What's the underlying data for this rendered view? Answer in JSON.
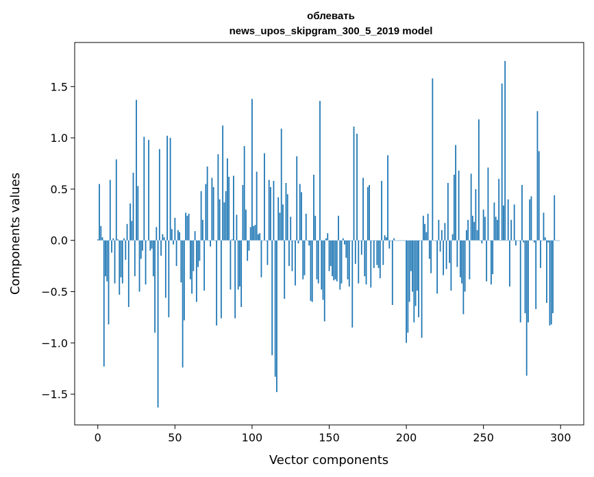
{
  "chart_data": {
    "type": "bar",
    "title": "облевать",
    "subtitle": "news_upos_skipgram_300_5_2019 model",
    "xlabel": "Vector components",
    "ylabel": "Components values",
    "xlim": [
      -15,
      315
    ],
    "ylim": [
      -1.8,
      1.93
    ],
    "x_ticks": [
      0,
      50,
      100,
      150,
      200,
      250,
      300
    ],
    "y_ticks": [
      -1.5,
      -1.0,
      -0.5,
      0.0,
      0.5,
      1.0,
      1.5
    ],
    "x_tick_labels": [
      "0",
      "50",
      "100",
      "150",
      "200",
      "250",
      "300"
    ],
    "y_tick_labels": [
      "−1.5",
      "−1.0",
      "−0.5",
      "0.0",
      "0.5",
      "1.0",
      "1.5"
    ],
    "grid": false,
    "bar_color": "#1f77b4",
    "values": [
      0.01,
      0.55,
      0.14,
      0.03,
      -1.23,
      -0.35,
      -0.4,
      -0.82,
      0.59,
      -0.12,
      0.02,
      -0.42,
      0.79,
      0.01,
      -0.53,
      -0.36,
      -0.42,
      0.02,
      -0.19,
      0.16,
      -0.65,
      0.36,
      0.19,
      0.66,
      -0.35,
      1.37,
      0.53,
      -0.5,
      -0.18,
      -0.1,
      1.01,
      -0.43,
      0.0,
      0.98,
      -0.1,
      -0.08,
      -0.35,
      -0.9,
      0.13,
      -1.63,
      0.89,
      -0.15,
      0.06,
      0.03,
      -0.56,
      1.02,
      -0.75,
      1.0,
      0.11,
      -0.04,
      0.22,
      -0.25,
      0.1,
      0.08,
      -0.41,
      -1.24,
      -0.78,
      0.27,
      0.24,
      0.26,
      -0.38,
      -0.52,
      -0.3,
      0.09,
      -0.6,
      -0.26,
      -0.2,
      0.48,
      0.2,
      -0.49,
      0.55,
      0.72,
      0.0,
      -0.06,
      0.61,
      0.52,
      0.0,
      -0.83,
      0.84,
      0.4,
      -0.76,
      1.12,
      0.37,
      0.48,
      0.8,
      0.62,
      -0.48,
      0.01,
      0.63,
      -0.76,
      0.25,
      -0.48,
      -0.45,
      -0.65,
      0.54,
      0.92,
      0.3,
      -0.2,
      -0.1,
      0.13,
      1.38,
      0.14,
      0.15,
      0.67,
      0.06,
      0.07,
      -0.36,
      0.0,
      0.85,
      0.0,
      -0.24,
      0.59,
      0.52,
      -1.12,
      0.58,
      -1.33,
      -1.48,
      0.42,
      0.27,
      1.09,
      0.35,
      -0.57,
      0.56,
      0.45,
      -0.25,
      0.23,
      -0.3,
      0.0,
      -0.44,
      0.82,
      -0.03,
      0.55,
      0.47,
      -0.38,
      -0.34,
      0.26,
      0.0,
      -0.05,
      -0.59,
      -0.6,
      0.64,
      0.24,
      -0.38,
      -0.42,
      1.36,
      -0.48,
      -0.58,
      -0.79,
      0.02,
      0.07,
      -0.3,
      -0.25,
      -0.35,
      -0.39,
      -0.38,
      -0.4,
      0.24,
      -0.48,
      -0.42,
      0.02,
      -0.04,
      -0.17,
      -0.38,
      -0.45,
      0.0,
      -0.85,
      1.11,
      -0.23,
      1.04,
      -0.42,
      0.0,
      -0.14,
      0.61,
      -0.35,
      -0.43,
      0.52,
      0.54,
      -0.46,
      0.0,
      -0.27,
      0.0,
      -0.24,
      -0.27,
      -0.37,
      0.58,
      -0.24,
      0.05,
      0.03,
      0.83,
      -0.08,
      0.0,
      -0.63,
      0.02,
      0.0,
      0.0,
      0.0,
      0.0,
      0.0,
      0.0,
      0.0,
      -1.0,
      -0.9,
      -0.6,
      -0.3,
      -0.5,
      -0.8,
      -0.64,
      -0.49,
      -0.75,
      0.0,
      -0.95,
      0.24,
      0.16,
      0.08,
      0.26,
      -0.18,
      -0.32,
      1.58,
      0.0,
      0.0,
      -0.52,
      0.2,
      -0.11,
      0.1,
      -0.34,
      0.17,
      -0.28,
      0.56,
      -0.22,
      -0.49,
      0.06,
      0.64,
      0.93,
      -0.26,
      0.68,
      -0.36,
      -0.42,
      -0.72,
      -0.5,
      0.1,
      0.2,
      -0.38,
      0.65,
      0.24,
      0.18,
      0.5,
      0.1,
      1.18,
      0.0,
      -0.03,
      0.3,
      0.23,
      -0.4,
      0.71,
      0.0,
      -0.43,
      -0.33,
      0.37,
      0.23,
      0.2,
      0.6,
      0.0,
      1.53,
      0.34,
      1.75,
      0.0,
      0.4,
      -0.45,
      0.2,
      0.0,
      0.35,
      -0.05,
      0.0,
      0.0,
      -0.8,
      0.54,
      -0.02,
      -0.71,
      -1.32,
      -0.8,
      0.4,
      0.43,
      0.0,
      -0.02,
      -0.67,
      1.26,
      0.87,
      -0.27,
      0.0,
      0.27,
      0.03,
      -0.61,
      -0.02,
      -0.83,
      -0.82,
      -0.71,
      0.44,
      0.0,
      0.0,
      0.0
    ]
  }
}
